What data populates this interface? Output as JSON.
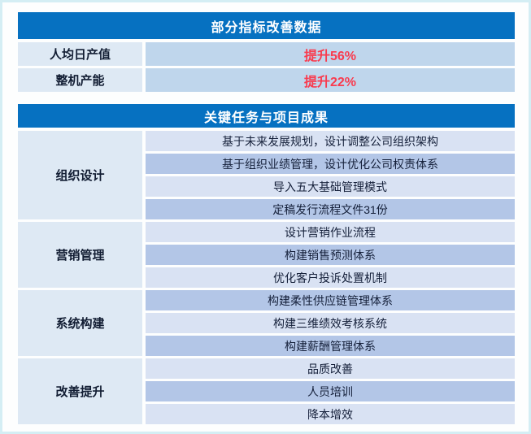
{
  "metrics_table": {
    "title": "部分指标改善数据",
    "rows": [
      {
        "label": "人均日产值",
        "value": "提升56%"
      },
      {
        "label": "整机产能",
        "value": "提升22%"
      }
    ]
  },
  "tasks_table": {
    "title": "关键任务与项目成果",
    "groups": [
      {
        "category": "组织设计",
        "items": [
          "基于未来发展规划，设计调整公司组织架构",
          "基于组织业绩管理，设计优化公司权责体系",
          "导入五大基础管理模式",
          "定稿发行流程文件31份"
        ]
      },
      {
        "category": "营销管理",
        "items": [
          "设计营销作业流程",
          "构建销售预测体系",
          "优化客户投诉处置机制"
        ]
      },
      {
        "category": "系统构建",
        "items": [
          "构建柔性供应链管理体系",
          "构建三维绩效考核系统",
          "构建薪酬管理体系"
        ]
      },
      {
        "category": "改善提升",
        "items": [
          "品质改善",
          "人员培训",
          "降本增效"
        ]
      }
    ]
  },
  "colors": {
    "header_blue": "#0671c1",
    "label_cell": "#dee9f4",
    "metric_value_cell": "#bfd6ec",
    "row_light": "#d9e2f3",
    "row_dark": "#b3c6e7",
    "value_red": "#f93b4e",
    "text_dark": "#121d33",
    "frame": "#d4eef4"
  }
}
